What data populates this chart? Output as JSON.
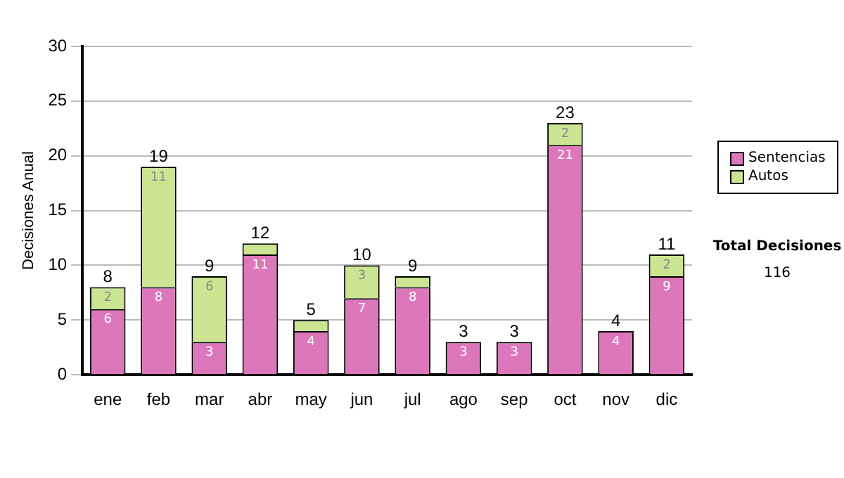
{
  "chart_data": {
    "type": "bar",
    "stacked": true,
    "ylabel": "Decisiones Anual",
    "categories": [
      "ene",
      "feb",
      "mar",
      "abr",
      "may",
      "jun",
      "jul",
      "ago",
      "sep",
      "oct",
      "nov",
      "dic"
    ],
    "series": [
      {
        "name": "Sentencias",
        "color": "#dd77bb",
        "values": [
          6,
          8,
          3,
          11,
          4,
          7,
          8,
          3,
          3,
          21,
          4,
          9
        ],
        "value_labels": [
          "6",
          "8",
          "3",
          "11",
          "4",
          "7",
          "8",
          "3",
          "3",
          "21",
          "4",
          "9"
        ]
      },
      {
        "name": "Autos",
        "color": "#cce593",
        "values": [
          2,
          11,
          6,
          1,
          1,
          3,
          1,
          0,
          0,
          2,
          0,
          2
        ],
        "value_labels": [
          "2",
          "11",
          "6",
          null,
          null,
          "3",
          null,
          null,
          null,
          "2",
          null,
          "2"
        ]
      }
    ],
    "totals": [
      "8",
      "19",
      "9",
      "12",
      "5",
      "10",
      "9",
      "3",
      "3",
      "23",
      "4",
      "11"
    ],
    "ylim": [
      0,
      30
    ],
    "yticks": [
      0,
      5,
      10,
      15,
      20,
      25,
      30
    ],
    "grid": "y",
    "legend": "right",
    "annotations": [
      "Total Decisiones",
      "116"
    ]
  }
}
